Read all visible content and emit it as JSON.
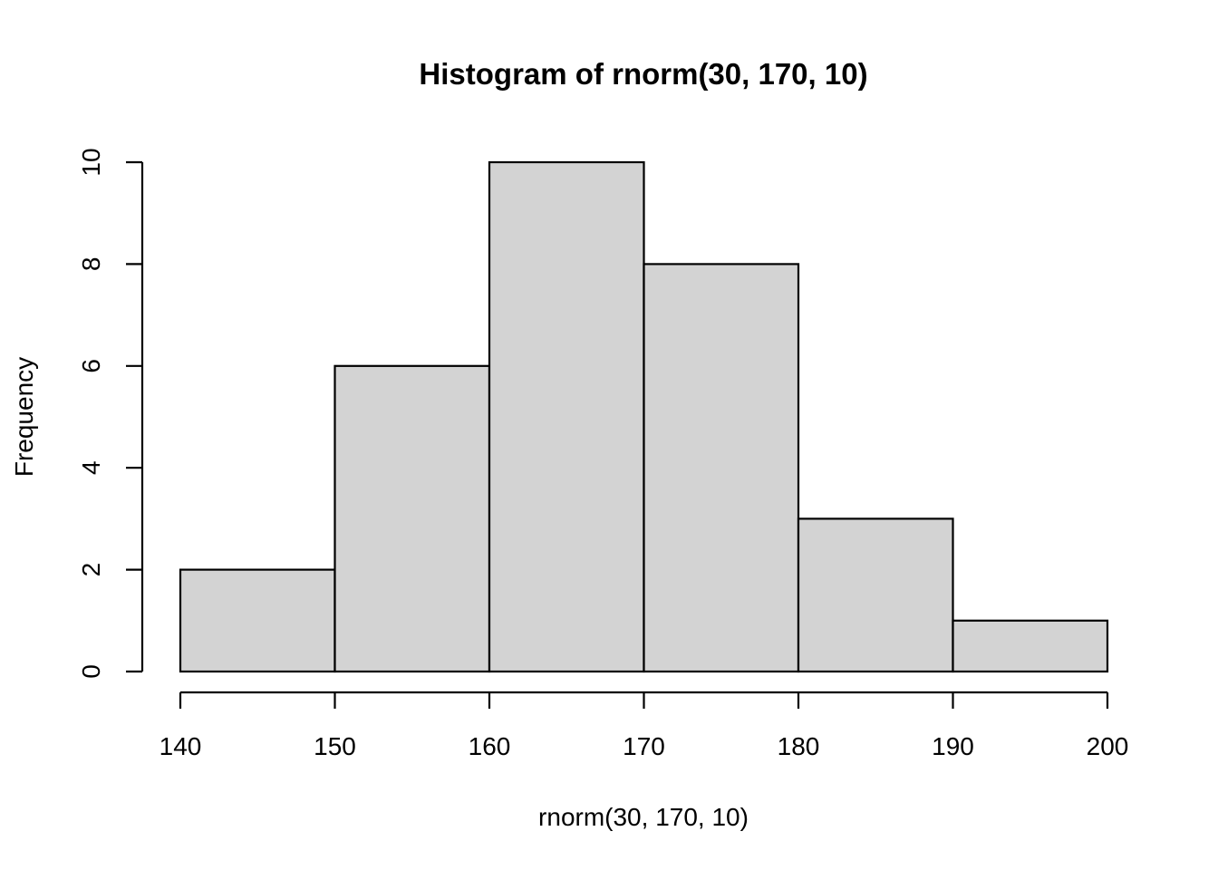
{
  "chart_data": {
    "type": "bar",
    "title": "Histogram of rnorm(30, 170, 10)",
    "xlabel": "rnorm(30, 170, 10)",
    "ylabel": "Frequency",
    "breaks": [
      140,
      150,
      160,
      170,
      180,
      190,
      200
    ],
    "bins": [
      {
        "x0": 140,
        "x1": 150,
        "count": 2
      },
      {
        "x0": 150,
        "x1": 160,
        "count": 6
      },
      {
        "x0": 160,
        "x1": 170,
        "count": 10
      },
      {
        "x0": 170,
        "x1": 180,
        "count": 8
      },
      {
        "x0": 180,
        "x1": 190,
        "count": 3
      },
      {
        "x0": 190,
        "x1": 200,
        "count": 1
      }
    ],
    "xlim": [
      140,
      200
    ],
    "ylim": [
      0,
      10
    ],
    "x_ticks": [
      140,
      150,
      160,
      170,
      180,
      190,
      200
    ],
    "y_ticks": [
      0,
      2,
      4,
      6,
      8,
      10
    ],
    "bar_fill": "#d3d3d3",
    "bar_stroke": "#000000",
    "grid": false
  }
}
